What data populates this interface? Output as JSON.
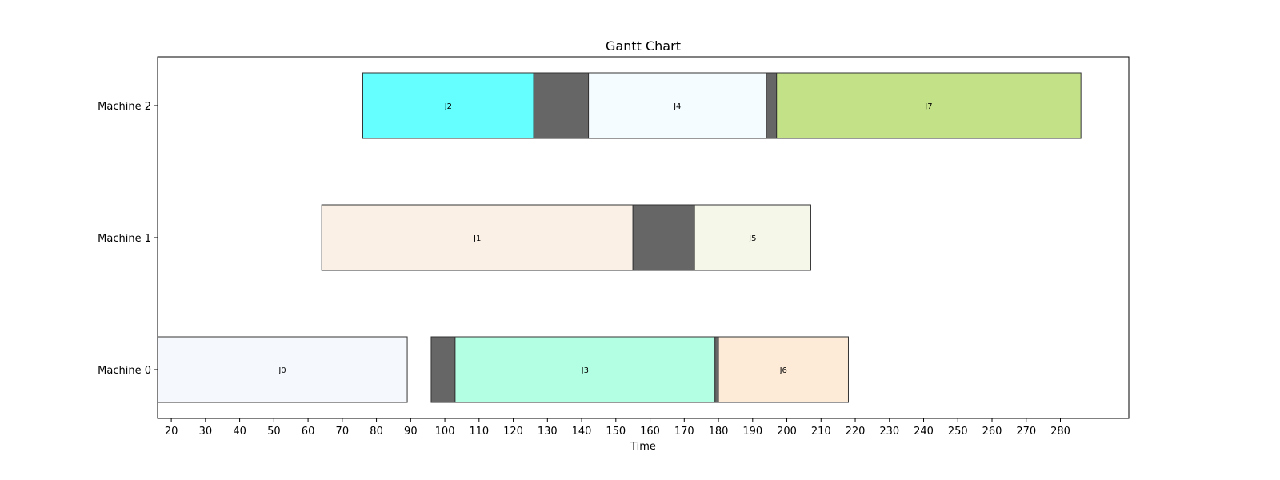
{
  "chart_data": {
    "type": "gantt",
    "title": "Gantt Chart",
    "xlabel": "Time",
    "ylabel": "",
    "xlim": [
      16,
      300
    ],
    "x_ticks": [
      20,
      30,
      40,
      50,
      60,
      70,
      80,
      90,
      100,
      110,
      120,
      130,
      140,
      150,
      160,
      170,
      180,
      190,
      200,
      210,
      220,
      230,
      240,
      250,
      260,
      270,
      280
    ],
    "machines": [
      "Machine 0",
      "Machine 1",
      "Machine 2"
    ],
    "setup_color": "#666666",
    "tasks": [
      {
        "machine": 0,
        "label": "J0",
        "start": 16,
        "end": 89,
        "color": "#F5F8FD"
      },
      {
        "machine": 0,
        "label": "",
        "start": 96,
        "end": 103,
        "color": "#666666",
        "setup": true
      },
      {
        "machine": 0,
        "label": "J3",
        "start": 103,
        "end": 179,
        "color": "#B3FFE3"
      },
      {
        "machine": 0,
        "label": "",
        "start": 179,
        "end": 180,
        "color": "#666666",
        "setup": true
      },
      {
        "machine": 0,
        "label": "J6",
        "start": 180,
        "end": 218,
        "color": "#FEEBD7"
      },
      {
        "machine": 1,
        "label": "J1",
        "start": 64,
        "end": 155,
        "color": "#FAF0E6"
      },
      {
        "machine": 1,
        "label": "",
        "start": 155,
        "end": 173,
        "color": "#666666",
        "setup": true
      },
      {
        "machine": 1,
        "label": "J5",
        "start": 173,
        "end": 207,
        "color": "#F5F7E8"
      },
      {
        "machine": 2,
        "label": "J2",
        "start": 76,
        "end": 126,
        "color": "#66FFFF"
      },
      {
        "machine": 2,
        "label": "",
        "start": 126,
        "end": 142,
        "color": "#666666",
        "setup": true
      },
      {
        "machine": 2,
        "label": "J4",
        "start": 142,
        "end": 194,
        "color": "#F5FCFF"
      },
      {
        "machine": 2,
        "label": "",
        "start": 194,
        "end": 197,
        "color": "#666666",
        "setup": true
      },
      {
        "machine": 2,
        "label": "J7",
        "start": 197,
        "end": 286,
        "color": "#C3E187"
      }
    ]
  }
}
